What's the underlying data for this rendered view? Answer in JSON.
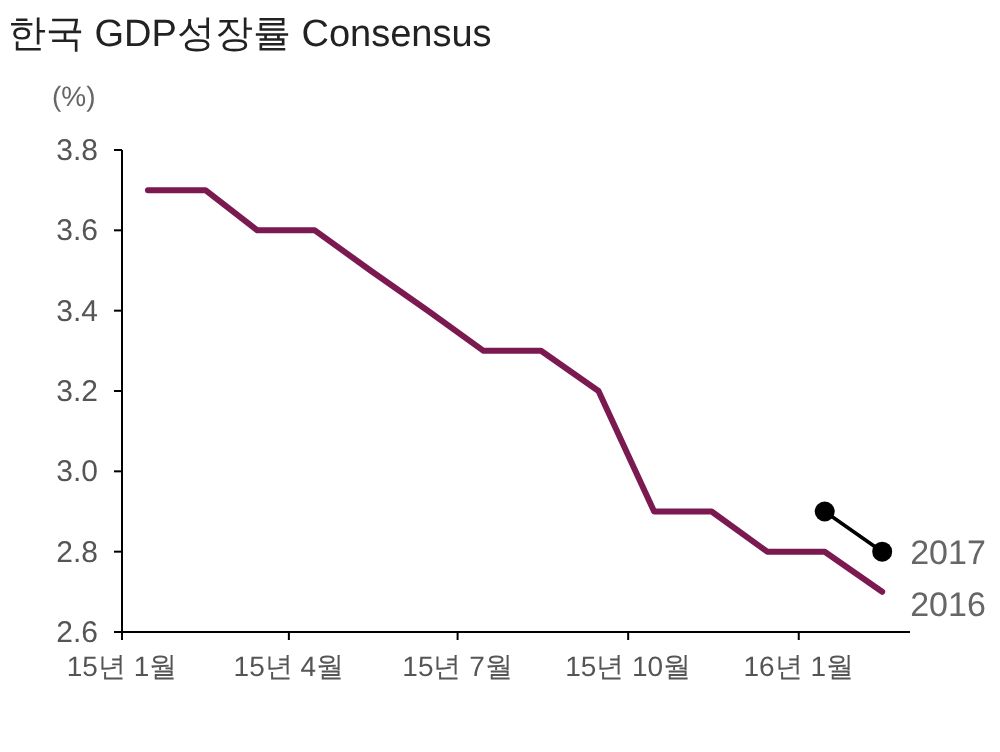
{
  "chart_data": {
    "type": "line",
    "title": "한국 GDP성장률 Consensus",
    "ylabel": "(%)",
    "xlim": [
      "2015-01-01",
      "2016-03-01"
    ],
    "xticks": [
      {
        "value": "2015-01-01",
        "label": "15년 1월"
      },
      {
        "value": "2015-04-01",
        "label": "15년 4월"
      },
      {
        "value": "2015-07-01",
        "label": "15년 7월"
      },
      {
        "value": "2015-10-01",
        "label": "15년 10월"
      },
      {
        "value": "2016-01-01",
        "label": "16년 1월"
      }
    ],
    "ylim": [
      2.6,
      3.8
    ],
    "yticks": [
      {
        "value": 2.6,
        "label": "2.6"
      },
      {
        "value": 2.8,
        "label": "2.8"
      },
      {
        "value": 3.0,
        "label": "3.0"
      },
      {
        "value": 3.2,
        "label": "3.2"
      },
      {
        "value": 3.4,
        "label": "3.4"
      },
      {
        "value": 3.6,
        "label": "3.6"
      },
      {
        "value": 3.8,
        "label": "3.8"
      }
    ],
    "grid": false,
    "legend": false,
    "series": [
      {
        "name": "2016",
        "color": "#7a1a50",
        "marker": "none",
        "x": [
          "2015-01-15",
          "2015-02-15",
          "2015-03-15",
          "2015-04-15",
          "2015-05-15",
          "2015-06-15",
          "2015-07-15",
          "2015-08-15",
          "2015-09-15",
          "2015-10-15",
          "2015-11-15",
          "2015-12-15",
          "2016-01-15",
          "2016-02-15"
        ],
        "values": [
          3.7,
          3.7,
          3.6,
          3.6,
          3.5,
          3.4,
          3.3,
          3.3,
          3.2,
          2.9,
          2.9,
          2.8,
          2.8,
          2.7
        ]
      },
      {
        "name": "2017",
        "color": "#000000",
        "marker": "circle",
        "x": [
          "2016-01-15",
          "2016-02-15"
        ],
        "values": [
          2.9,
          2.8
        ]
      }
    ]
  }
}
